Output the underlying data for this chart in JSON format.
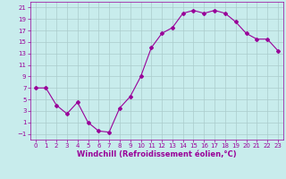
{
  "x": [
    0,
    1,
    2,
    3,
    4,
    5,
    6,
    7,
    8,
    9,
    10,
    11,
    12,
    13,
    14,
    15,
    16,
    17,
    18,
    19,
    20,
    21,
    22,
    23
  ],
  "y": [
    7,
    7,
    4,
    2.5,
    4.5,
    1,
    -0.5,
    -0.7,
    3.5,
    5.5,
    9,
    14,
    16.5,
    17.5,
    20,
    20.5,
    20,
    20.5,
    20,
    18.5,
    16.5,
    15.5,
    15.5,
    13.5
  ],
  "line_color": "#990099",
  "marker": "D",
  "marker_size": 2,
  "bg_color": "#c8ecec",
  "grid_color": "#aacccc",
  "xlabel": "Windchill (Refroidissement éolien,°C)",
  "xlabel_color": "#990099",
  "tick_color": "#990099",
  "ylim": [
    -2,
    22
  ],
  "xlim": [
    -0.5,
    23.5
  ],
  "yticks": [
    -1,
    1,
    3,
    5,
    7,
    9,
    11,
    13,
    15,
    17,
    19,
    21
  ],
  "xticks": [
    0,
    1,
    2,
    3,
    4,
    5,
    6,
    7,
    8,
    9,
    10,
    11,
    12,
    13,
    14,
    15,
    16,
    17,
    18,
    19,
    20,
    21,
    22,
    23
  ],
  "tick_fontsize": 5.0,
  "xlabel_fontsize": 6.0
}
